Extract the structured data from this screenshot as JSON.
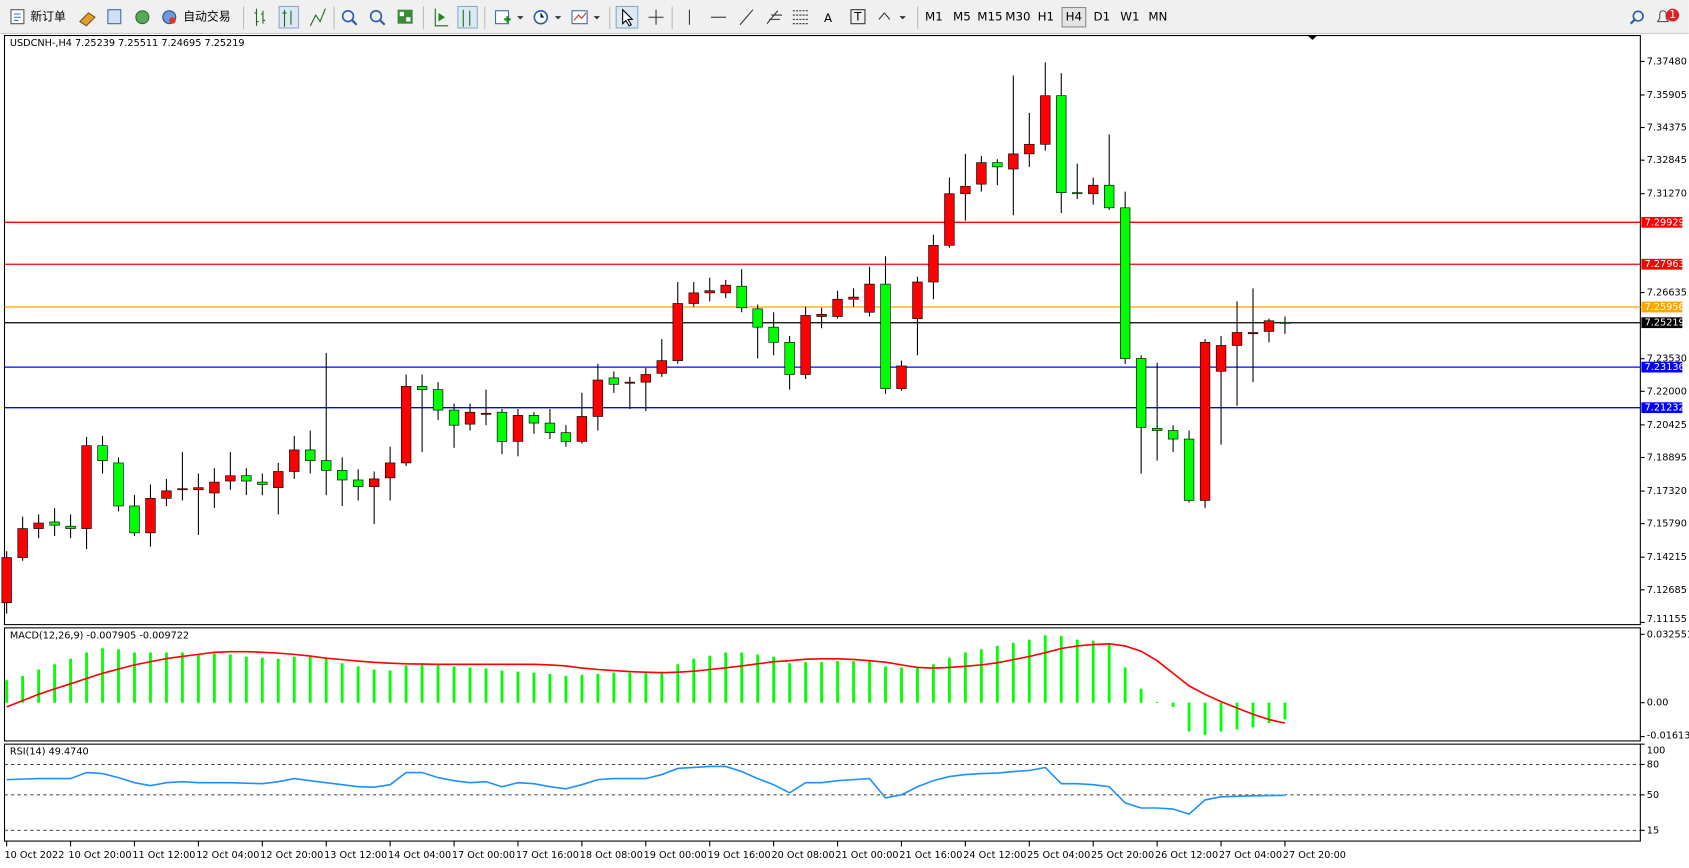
{
  "toolbar": {
    "new_order": "新订单",
    "auto_trading": "自动交易",
    "text_tool": "A",
    "label_tool": "T",
    "timeframes": [
      "M1",
      "M5",
      "M15",
      "M30",
      "H1",
      "H4",
      "D1",
      "W1",
      "MN"
    ],
    "active_timeframe": "H4",
    "notifications": 1
  },
  "chart_data": [
    {
      "type": "candlestick",
      "symbol": "USDCNH-,H4",
      "up_color": "#ff0000",
      "down_color": "#00ff00",
      "wick_color": "#000000",
      "categories": [
        "10 Oct 2022",
        null,
        null,
        null,
        "10 Oct 20:00",
        null,
        null,
        null,
        "11 Oct 12:00",
        null,
        null,
        null,
        "12 Oct 04:00",
        null,
        null,
        null,
        "12 Oct 20:00",
        null,
        null,
        null,
        "13 Oct 12:00",
        null,
        null,
        null,
        "14 Oct 04:00",
        null,
        null,
        null,
        "17 Oct 00:00",
        null,
        null,
        null,
        "17 Oct 16:00",
        null,
        null,
        null,
        "18 Oct 08:00",
        null,
        null,
        null,
        "19 Oct 00:00",
        null,
        null,
        null,
        "19 Oct 16:00",
        null,
        null,
        null,
        "20 Oct 08:00",
        null,
        null,
        null,
        "21 Oct 00:00",
        null,
        null,
        null,
        "21 Oct 16:00",
        null,
        null,
        null,
        "24 Oct 12:00",
        null,
        null,
        null,
        "25 Oct 04:00",
        null,
        null,
        null,
        "25 Oct 20:00",
        null,
        null,
        null,
        "26 Oct 12:00",
        null,
        null,
        null,
        "27 Oct 04:00",
        null,
        null,
        null,
        "27 Oct 20:00"
      ],
      "candles": [
        [
          7.1208,
          7.145,
          7.1157,
          7.142
        ],
        [
          7.142,
          7.1612,
          7.1405,
          7.1556
        ],
        [
          7.1556,
          7.1622,
          7.1511,
          7.1582
        ],
        [
          7.1587,
          7.1652,
          7.1521,
          7.1572
        ],
        [
          7.1567,
          7.1622,
          7.1511,
          7.1556
        ],
        [
          7.1556,
          7.1986,
          7.146,
          7.1945
        ],
        [
          7.1945,
          7.1991,
          7.1814,
          7.1875
        ],
        [
          7.1864,
          7.189,
          7.1637,
          7.1662
        ],
        [
          7.1662,
          7.1713,
          7.1521,
          7.1536
        ],
        [
          7.1536,
          7.1763,
          7.1471,
          7.1698
        ],
        [
          7.1698,
          7.1789,
          7.1662,
          7.1733
        ],
        [
          7.1738,
          7.1915,
          7.1688,
          7.1743
        ],
        [
          7.1738,
          7.1814,
          7.1526,
          7.1748
        ],
        [
          7.1723,
          7.1839,
          7.1652,
          7.1774
        ],
        [
          7.1779,
          7.1915,
          7.1738,
          7.1804
        ],
        [
          7.1804,
          7.1839,
          7.1713,
          7.1779
        ],
        [
          7.1774,
          7.1814,
          7.1713,
          7.1763
        ],
        [
          7.1748,
          7.1864,
          7.1622,
          7.1824
        ],
        [
          7.1824,
          7.1991,
          7.1789,
          7.1925
        ],
        [
          7.1925,
          7.2016,
          7.1814,
          7.1875
        ],
        [
          7.1875,
          7.238,
          7.1713,
          7.1829
        ],
        [
          7.1829,
          7.189,
          7.1662,
          7.1784
        ],
        [
          7.1784,
          7.1834,
          7.1688,
          7.1753
        ],
        [
          7.1753,
          7.1824,
          7.1577,
          7.1789
        ],
        [
          7.1794,
          7.194,
          7.1688,
          7.1864
        ],
        [
          7.1864,
          7.2279,
          7.1849,
          7.2223
        ],
        [
          7.2223,
          7.2279,
          7.1915,
          7.2208
        ],
        [
          7.2208,
          7.2243,
          7.2066,
          7.2112
        ],
        [
          7.2112,
          7.2142,
          7.1935,
          7.2041
        ],
        [
          7.2046,
          7.2142,
          7.2016,
          7.2102
        ],
        [
          7.2092,
          7.2208,
          7.2041,
          7.2097
        ],
        [
          7.2102,
          7.2117,
          7.1905,
          7.1965
        ],
        [
          7.1965,
          7.2117,
          7.1895,
          7.2087
        ],
        [
          7.2087,
          7.2102,
          7.2001,
          7.2051
        ],
        [
          7.2051,
          7.2117,
          7.1976,
          7.2006
        ],
        [
          7.2006,
          7.2041,
          7.194,
          7.1965
        ],
        [
          7.1965,
          7.2193,
          7.1955,
          7.2082
        ],
        [
          7.2082,
          7.2329,
          7.2016,
          7.2253
        ],
        [
          7.2263,
          7.2294,
          7.2193,
          7.2233
        ],
        [
          7.2238,
          7.2268,
          7.2117,
          7.2243
        ],
        [
          7.2243,
          7.2309,
          7.2107,
          7.2279
        ],
        [
          7.2284,
          7.2445,
          7.2268,
          7.2344
        ],
        [
          7.2344,
          7.2713,
          7.2329,
          7.2612
        ],
        [
          7.2612,
          7.2713,
          7.2597,
          7.2662
        ],
        [
          7.2662,
          7.2733,
          7.2622,
          7.2672
        ],
        [
          7.2662,
          7.2723,
          7.2637,
          7.2698
        ],
        [
          7.2693,
          7.2773,
          7.2571,
          7.2592
        ],
        [
          7.2587,
          7.2607,
          7.2354,
          7.2501
        ],
        [
          7.2501,
          7.2571,
          7.2369,
          7.243
        ],
        [
          7.243,
          7.246,
          7.2208,
          7.2279
        ],
        [
          7.2279,
          7.2597,
          7.2258,
          7.2556
        ],
        [
          7.2551,
          7.2592,
          7.2496,
          7.2561
        ],
        [
          7.2551,
          7.2672,
          7.2541,
          7.2632
        ],
        [
          7.2632,
          7.2683,
          7.2597,
          7.2642
        ],
        [
          7.2571,
          7.2784,
          7.2551,
          7.2703
        ],
        [
          7.2703,
          7.2834,
          7.2188,
          7.2213
        ],
        [
          7.2213,
          7.2344,
          7.2203,
          7.2319
        ],
        [
          7.2541,
          7.2738,
          7.2369,
          7.2713
        ],
        [
          7.2713,
          7.2935,
          7.2632,
          7.2885
        ],
        [
          7.2885,
          7.3203,
          7.2874,
          7.3127
        ],
        [
          7.3127,
          7.3314,
          7.3001,
          7.3162
        ],
        [
          7.3172,
          7.3304,
          7.3137,
          7.3273
        ],
        [
          7.3273,
          7.3289,
          7.3167,
          7.3253
        ],
        [
          7.3243,
          7.3682,
          7.3026,
          7.3314
        ],
        [
          7.3314,
          7.3506,
          7.3253,
          7.3359
        ],
        [
          7.3359,
          7.3743,
          7.3329,
          7.3587
        ],
        [
          7.3587,
          7.3693,
          7.3036,
          7.3132
        ],
        [
          7.3132,
          7.3268,
          7.3102,
          7.3127
        ],
        [
          7.3127,
          7.3203,
          7.3076,
          7.3167
        ],
        [
          7.3167,
          7.3405,
          7.3051,
          7.3061
        ],
        [
          7.3061,
          7.3137,
          7.2329,
          7.2354
        ],
        [
          7.2354,
          7.2369,
          7.1814,
          7.2031
        ],
        [
          7.2026,
          7.2334,
          7.1875,
          7.2016
        ],
        [
          7.2016,
          7.2041,
          7.1915,
          7.1976
        ],
        [
          7.1976,
          7.2016,
          7.1678,
          7.1688
        ],
        [
          7.1688,
          7.2445,
          7.1652,
          7.243
        ],
        [
          7.2294,
          7.246,
          7.195,
          7.2415
        ],
        [
          7.2415,
          7.2622,
          7.2132,
          7.2476
        ],
        [
          7.247,
          7.2683,
          7.2243,
          7.2476
        ],
        [
          7.2481,
          7.2541,
          7.243,
          7.2531
        ],
        [
          7.25239,
          7.25511,
          7.24695,
          7.25219
        ]
      ],
      "ylim": [
        7.11155,
        7.3748
      ],
      "yticks": [
        {
          "value": 7.3748,
          "label": "7.37480"
        },
        7.35905,
        7.34375,
        7.32845,
        {
          "value": 7.3127,
          "label": "7.31270"
        },
        7.26635,
        {
          "value": 7.2353,
          "label": "7.23530"
        },
        {
          "value": 7.22,
          "label": "7.22000"
        },
        7.20425,
        7.18895,
        {
          "value": 7.1732,
          "label": "7.17320"
        },
        {
          "value": 7.1579,
          "label": "7.15790"
        },
        7.14215,
        7.12685,
        7.11155
      ],
      "grid": false,
      "levels": [
        {
          "value": 7.29929,
          "color": "#ff0000"
        },
        {
          "value": 7.27963,
          "color": "#ff0000"
        },
        {
          "value": 7.25956,
          "color": "#ffa500"
        },
        {
          "value": 7.25219,
          "color": "#000000"
        },
        {
          "value": 7.23136,
          "color": "#0000ff"
        },
        {
          "value": 7.21232,
          "color": "#0000ff"
        }
      ]
    },
    {
      "type": "macd",
      "title": "MACD(12,26,9)",
      "ylim": [
        -0.016137,
        0.032551
      ],
      "yticks": [
        0.032551,
        {
          "value": 0,
          "label": "0.00"
        },
        -0.016137
      ],
      "grid": false,
      "series": [
        {
          "type": "bar",
          "color": "#00ff00",
          "values": [
            0.0107,
            0.0127,
            0.0158,
            0.0183,
            0.0209,
            0.0239,
            0.0259,
            0.0254,
            0.0239,
            0.0239,
            0.0239,
            0.0239,
            0.0229,
            0.0234,
            0.0229,
            0.0219,
            0.0214,
            0.0209,
            0.0219,
            0.0224,
            0.0214,
            0.0188,
            0.0173,
            0.0158,
            0.0153,
            0.0178,
            0.0188,
            0.0183,
            0.0173,
            0.0168,
            0.0163,
            0.0153,
            0.0148,
            0.0143,
            0.0137,
            0.0127,
            0.0132,
            0.0137,
            0.0143,
            0.0143,
            0.0143,
            0.0148,
            0.0183,
            0.0209,
            0.0224,
            0.0239,
            0.0239,
            0.0229,
            0.0219,
            0.0188,
            0.0193,
            0.0193,
            0.0198,
            0.0198,
            0.0204,
            0.0173,
            0.0168,
            0.0168,
            0.0183,
            0.0214,
            0.0239,
            0.0254,
            0.027,
            0.0285,
            0.03,
            0.0321,
            0.0318,
            0.03,
            0.0295,
            0.028,
            0.0168,
            0.0066,
            0.0003,
            -0.002,
            -0.0137,
            -0.0153,
            -0.0137,
            -0.0127,
            -0.0117,
            -0.0097,
            -0.007905
          ]
        },
        {
          "type": "line",
          "color": "#ff0000",
          "values": [
            -0.002,
            0.001,
            0.004,
            0.0066,
            0.009,
            0.0115,
            0.014,
            0.016,
            0.018,
            0.0195,
            0.021,
            0.022,
            0.023,
            0.024,
            0.0243,
            0.0243,
            0.024,
            0.0236,
            0.023,
            0.0222,
            0.0212,
            0.0205,
            0.0198,
            0.0192,
            0.0188,
            0.0185,
            0.0184,
            0.0183,
            0.0183,
            0.0183,
            0.0183,
            0.0183,
            0.0183,
            0.0183,
            0.018,
            0.0175,
            0.0165,
            0.0158,
            0.0153,
            0.0148,
            0.0145,
            0.0143,
            0.0145,
            0.015,
            0.0158,
            0.0166,
            0.0175,
            0.0185,
            0.0195,
            0.02,
            0.0207,
            0.0209,
            0.0209,
            0.0206,
            0.02,
            0.0193,
            0.018,
            0.0168,
            0.0165,
            0.0168,
            0.0173,
            0.018,
            0.019,
            0.0205,
            0.022,
            0.0238,
            0.0258,
            0.027,
            0.0277,
            0.028,
            0.027,
            0.0245,
            0.02,
            0.014,
            0.008,
            0.004,
            0.0005,
            -0.0025,
            -0.0055,
            -0.008,
            -0.009722
          ]
        }
      ]
    },
    {
      "type": "rsi",
      "title": "RSI(14)",
      "ylim": [
        15,
        100
      ],
      "yticks": [
        100,
        80,
        50,
        15
      ],
      "grid": true,
      "series": [
        {
          "type": "line",
          "color": "#1e90ff",
          "values": [
            65,
            65.5,
            66,
            66,
            66,
            72,
            71,
            67,
            62,
            59,
            62,
            63,
            62,
            62,
            62,
            61.5,
            61,
            63,
            66,
            64,
            62,
            60,
            58,
            57.5,
            60,
            72,
            72,
            67,
            64,
            62,
            63,
            58,
            62,
            61,
            58,
            56,
            60,
            65,
            66,
            66,
            66,
            70,
            76,
            77,
            78,
            78,
            73,
            66,
            60,
            52,
            62,
            62,
            64,
            65,
            66,
            47,
            50,
            58,
            64,
            68,
            70,
            71,
            71.5,
            73,
            74,
            77,
            61,
            61,
            60,
            58,
            42,
            37,
            37,
            36,
            31,
            45,
            48,
            48.5,
            49,
            49.3,
            49.474
          ],
          "value_labels": {
            "80": "49.4740"
          }
        }
      ]
    }
  ]
}
